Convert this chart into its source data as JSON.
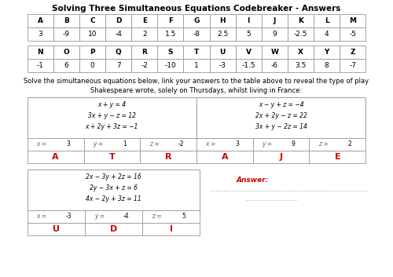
{
  "title": "Solving Three Simultaneous Equations Codebreaker - Answers",
  "table1_headers": [
    "A",
    "B",
    "C",
    "D",
    "E",
    "F",
    "G",
    "H",
    "I",
    "J",
    "K",
    "L",
    "M"
  ],
  "table1_values": [
    "3",
    "-9",
    "10",
    "-4",
    "2",
    "1.5",
    "-8",
    "2.5",
    "5",
    "9",
    "-2.5",
    "4",
    "-5"
  ],
  "table2_headers": [
    "N",
    "O",
    "P",
    "Q",
    "R",
    "S",
    "T",
    "U",
    "V",
    "W",
    "X",
    "Y",
    "Z"
  ],
  "table2_values": [
    "-1",
    "6",
    "0",
    "7",
    "-2",
    "-10",
    "1",
    "-3",
    "-1.5",
    "-6",
    "3.5",
    "8",
    "-7"
  ],
  "instruction_line1": "Solve the simultaneous equations below, link your answers to the table above to reveal the type of play",
  "instruction_line2": "Shakespeare wrote, solely on Thursdays, whilst living in France:",
  "eq1_lines": [
    "x + y = 4",
    "3x + y − z = 12",
    "x + 2y + 3z = −1"
  ],
  "eq2_lines": [
    "x − y + z = −4",
    "2x + 2y − z = 22",
    "3x + y − 2z = 14"
  ],
  "eq3_lines": [
    "2x − 3y + 2z = 16",
    "2y − 3x + z = 6",
    "4x − 2y + 3z = 11"
  ],
  "eq1_ans_vals": [
    "3",
    "1",
    "-2"
  ],
  "eq2_ans_vals": [
    "3",
    "9",
    "2"
  ],
  "eq3_ans_vals": [
    "-3",
    "-4",
    "5"
  ],
  "eq1_letters": [
    "A",
    "T",
    "R"
  ],
  "eq2_letters": [
    "A",
    "J",
    "E"
  ],
  "eq3_letters": [
    "U",
    "D",
    "I"
  ],
  "answer_label": "Answer:",
  "bg_color": "#ffffff",
  "border_color": "#999999",
  "red_color": "#cc0000",
  "black": "#000000",
  "gray_italic": "#666666"
}
